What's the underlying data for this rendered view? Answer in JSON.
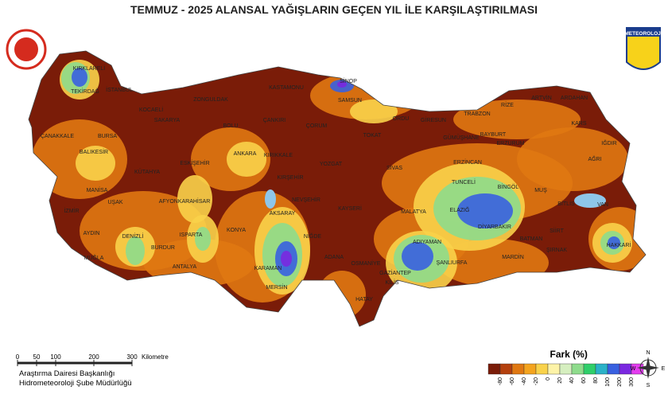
{
  "title": "TEMMUZ - 2025 ALANSAL YAĞIŞLARIN GEÇEN YIL İLE KARŞILAŞTIRILMASI",
  "logo_text": "METEOROLOJİ",
  "cities": [
    "KIRKLARELİ",
    "TEKİRDAĞ",
    "İSTANBUL",
    "ÇANAKKALE",
    "BALIKESİR",
    "BURSA",
    "KÜTAHYA",
    "ESKİŞEHİR",
    "MANİSA",
    "İZMİR",
    "UŞAK",
    "AFYONKARAHİSAR",
    "DENİZLİ",
    "AYDIN",
    "MUĞLA",
    "BURDUR",
    "ISPARTA",
    "ANTALYA",
    "KONYA",
    "KARAMAN",
    "MERSİN",
    "ANKARA",
    "ÇANKIRI",
    "KIRIKKALE",
    "KIRŞEHİR",
    "NEVŞEHİR",
    "AKSARAY",
    "NİĞDE",
    "ADANA",
    "OSMANİYE",
    "HATAY",
    "KİLİS",
    "GAZİANTEP",
    "ADIYAMAN",
    "ŞANLIURFA",
    "MARDİN",
    "BATMAN",
    "SİİRT",
    "ŞIRNAK",
    "HAKKARİ",
    "VAN",
    "BİTLİS",
    "MUŞ",
    "BİNGÖL",
    "DİYARBAKIR",
    "ELAZIĞ",
    "MALATYA",
    "TUNCELİ",
    "ERZİNCAN",
    "ERZURUM",
    "AĞRI",
    "IĞDIR",
    "KARS",
    "ARDAHAN",
    "ARTVİN",
    "RİZE",
    "TRABZON",
    "GÜMÜŞHANE",
    "BAYBURT",
    "GİRESUN",
    "ORDU",
    "SAMSUN",
    "SİNOP",
    "KASTAMONU",
    "ÇORUM",
    "TOKAT",
    "YOZGAT",
    "SİVAS",
    "KAYSERİ",
    "ZONGULDAK",
    "BOLU",
    "SAKARYA",
    "KOCAELİ"
  ],
  "scale_bar": {
    "ticks": [
      0,
      50,
      100,
      200,
      300
    ],
    "unit": "Kilometre"
  },
  "credits": [
    "Araştırma Dairesi Başkanlığı",
    "Hidrometeoroloji Şube Müdürlüğü"
  ],
  "legend": {
    "title": "Fark (%)",
    "ticks": [
      -80,
      -60,
      -40,
      -20,
      0,
      20,
      40,
      60,
      80,
      100,
      200,
      300
    ],
    "colors": [
      "#7a1c08",
      "#b4400e",
      "#e07812",
      "#f4a41e",
      "#f9d24a",
      "#fdf3a8",
      "#d6efc0",
      "#8edc8c",
      "#2fcf6a",
      "#2bb2c8",
      "#3860e0",
      "#7a28e0",
      "#e43cf0"
    ]
  },
  "compass": [
    "N",
    "E",
    "S",
    "W"
  ]
}
